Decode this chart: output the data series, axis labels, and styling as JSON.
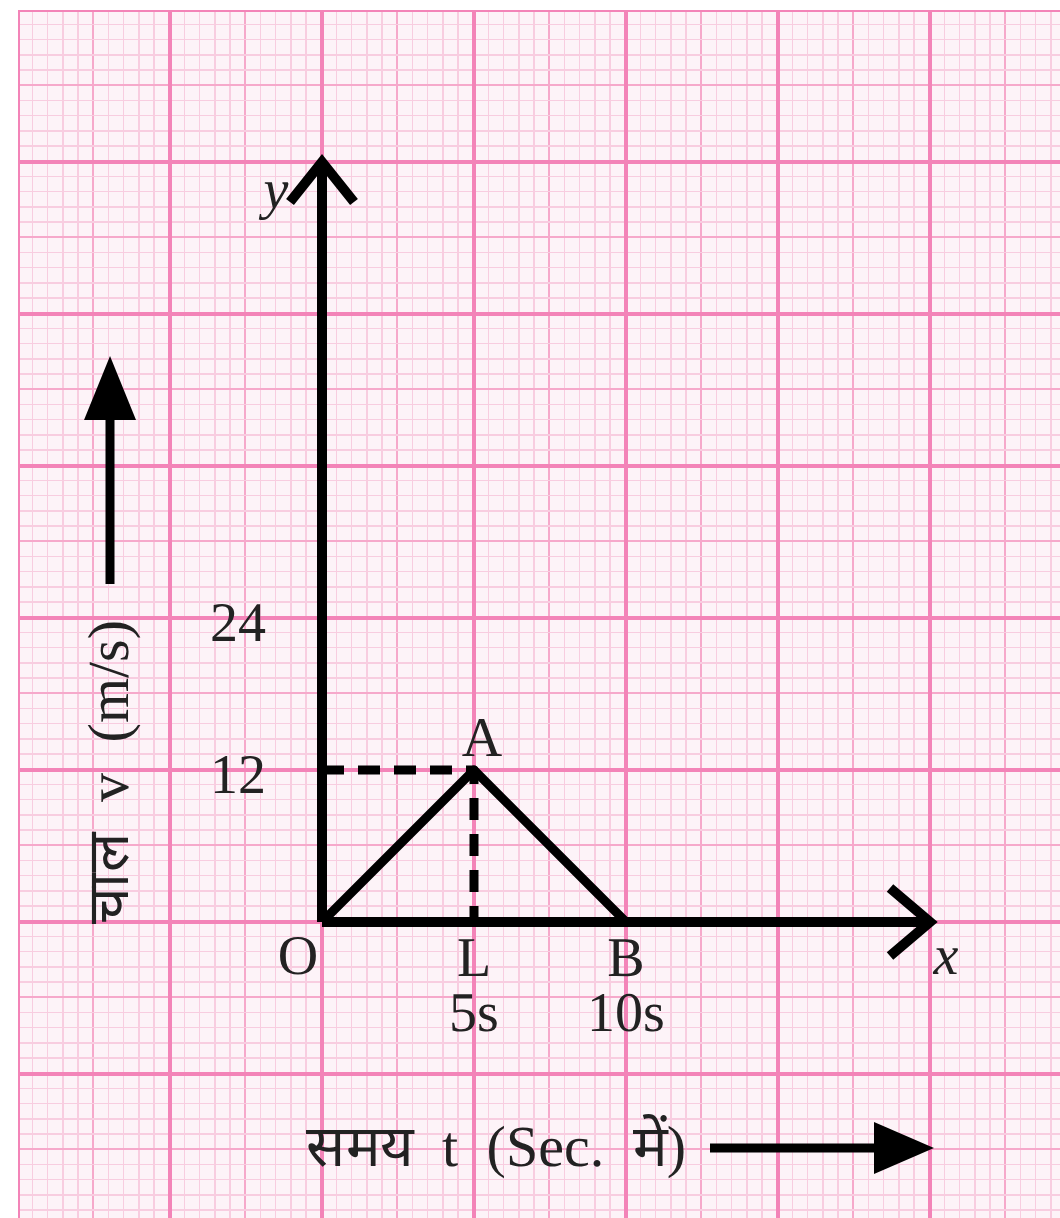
{
  "chart_data": {
    "type": "line",
    "xlabel": "समय t (Sec. में)",
    "ylabel": "चाल v (m/s)",
    "xlim": [
      0,
      20
    ],
    "ylim": [
      0,
      60
    ],
    "xticks": [
      {
        "value": 5,
        "label": "5s"
      },
      {
        "value": 10,
        "label": "10s"
      }
    ],
    "yticks": [
      12,
      24
    ],
    "grid": true,
    "series": [
      {
        "color": "#000000",
        "x": [
          0,
          5,
          10
        ],
        "values": [
          0,
          12,
          0
        ],
        "line_style": "solid"
      },
      {
        "color": "#000000",
        "x": [
          0,
          5,
          5
        ],
        "values": [
          12,
          12,
          0
        ],
        "line_style": "dashed"
      }
    ],
    "annotations": [
      {
        "text": "O",
        "x": 0,
        "y": 0
      },
      {
        "text": "A",
        "x": 5,
        "y": 12
      },
      {
        "text": "L",
        "x": 5,
        "y": 0
      },
      {
        "text": "B",
        "x": 10,
        "y": 0
      },
      "x",
      "y"
    ]
  }
}
